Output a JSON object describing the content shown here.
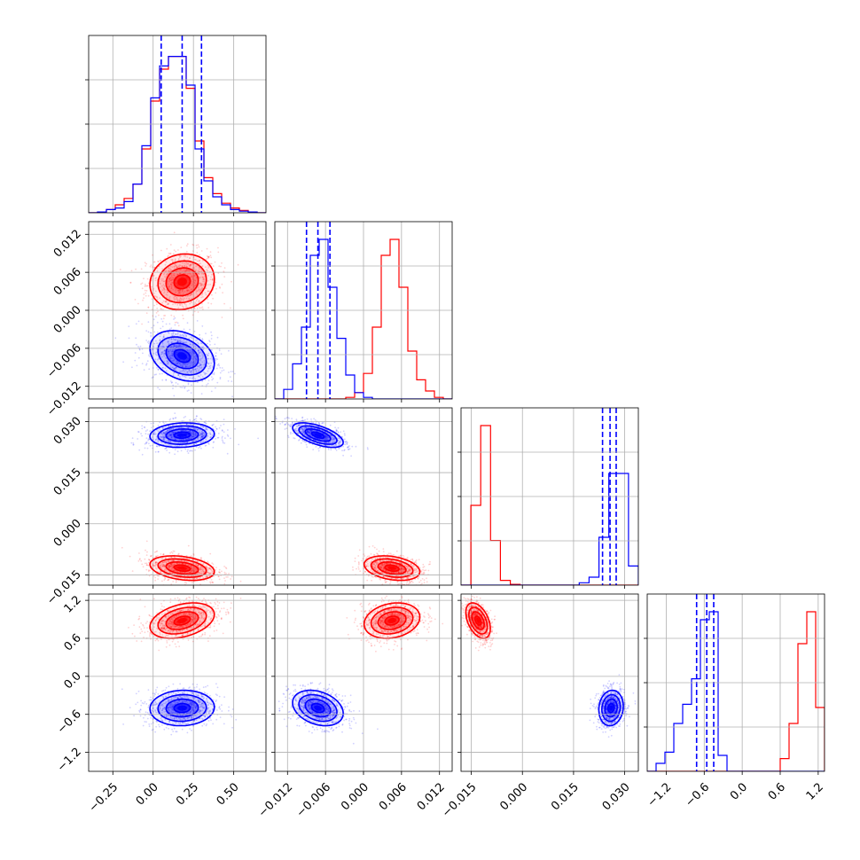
{
  "chart_data": {
    "type": "corner",
    "grid": true,
    "params": [
      {
        "index": 0,
        "range": [
          -0.4,
          0.7
        ],
        "ticks": [
          -0.25,
          0.0,
          0.25,
          0.5
        ],
        "tick_labels": [
          "−0.25",
          "0.00",
          "0.25",
          "0.50"
        ]
      },
      {
        "index": 1,
        "range": [
          -0.014,
          0.014
        ],
        "ticks": [
          -0.012,
          -0.006,
          0.0,
          0.006,
          0.012
        ],
        "tick_labels": [
          "−0.012",
          "−0.006",
          "0.000",
          "0.006",
          "0.012"
        ]
      },
      {
        "index": 2,
        "range": [
          -0.018,
          0.034
        ],
        "ticks": [
          -0.015,
          0.0,
          0.015,
          0.03
        ],
        "tick_labels": [
          "−0.015",
          "0.000",
          "0.015",
          "0.030"
        ]
      },
      {
        "index": 3,
        "range": [
          -1.5,
          1.3
        ],
        "ticks": [
          -1.2,
          -0.6,
          0.0,
          0.6,
          1.2
        ],
        "tick_labels": [
          "−1.2",
          "−0.6",
          "0.0",
          "0.6",
          "1.2"
        ]
      }
    ],
    "series": [
      {
        "color": "#ff0000",
        "means": [
          0.18,
          0.0045,
          -0.013,
          0.88
        ],
        "sigmas": [
          0.1,
          0.0022,
          0.0018,
          0.14
        ],
        "histograms": [
          [
            0,
            0.5,
            2,
            5,
            9,
            18,
            40,
            70,
            90,
            98,
            98,
            78,
            45,
            22,
            12,
            6,
            3,
            1.5,
            0.5,
            0
          ],
          [
            0,
            0,
            0,
            0,
            0,
            0,
            0,
            0,
            1,
            4,
            16,
            45,
            90,
            100,
            70,
            30,
            12,
            5,
            1,
            0
          ],
          [
            0,
            50,
            100,
            28,
            3,
            0.5,
            0,
            0,
            0,
            0,
            0,
            0,
            0,
            0,
            0,
            0,
            0,
            0
          ],
          [
            0,
            0,
            0,
            0,
            0,
            0,
            0,
            0,
            0,
            0,
            0,
            0,
            0,
            0,
            0,
            8,
            30,
            80,
            100,
            40
          ]
        ]
      },
      {
        "color": "#0000ff",
        "means": [
          0.18,
          -0.0072,
          0.026,
          -0.5
        ],
        "sigmas": [
          0.1,
          0.002,
          0.0018,
          0.14
        ],
        "histograms": [
          [
            0,
            0.5,
            2,
            3,
            7,
            18,
            42,
            72,
            92,
            98,
            98,
            80,
            40,
            20,
            10,
            5,
            2,
            1,
            0.5,
            0
          ],
          [
            0,
            6,
            22,
            45,
            90,
            100,
            70,
            38,
            15,
            4,
            1,
            0,
            0,
            0,
            0,
            0,
            0,
            0,
            0,
            0
          ],
          [
            0,
            0,
            0,
            0,
            0,
            0,
            0,
            0,
            0,
            0,
            0,
            0,
            1.5,
            5,
            30,
            70,
            70,
            12
          ],
          [
            0,
            5,
            12,
            30,
            42,
            58,
            95,
            100,
            10,
            0,
            0,
            0,
            0,
            0,
            0,
            0,
            0,
            0,
            0,
            0
          ]
        ],
        "quantiles": [
          [
            0.05,
            0.18,
            0.3
          ],
          [
            -0.009,
            -0.0072,
            -0.0053
          ],
          [
            0.0235,
            0.0257,
            0.0275
          ],
          [
            -0.72,
            -0.56,
            -0.45
          ]
        ]
      }
    ],
    "correlations": {
      "red": {
        "0-1": 0.1,
        "0-2": -0.3,
        "0-3": 0.35,
        "1-2": -0.3,
        "1-3": 0.2,
        "2-3": -0.45
      },
      "blue": {
        "0-1": -0.3,
        "0-2": 0.1,
        "0-3": 0.05,
        "1-2": -0.6,
        "1-3": -0.3,
        "2-3": 0.1
      }
    }
  }
}
